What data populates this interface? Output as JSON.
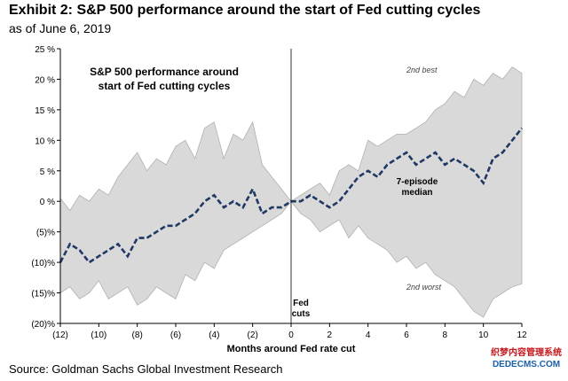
{
  "header": {
    "title": "Exhibit 2: S&P 500 performance around the start of Fed cutting cycles",
    "subtitle": "as of June 6, 2019"
  },
  "source": "Source: Goldman Sachs Global Investment Research",
  "watermark": {
    "line1": "织梦内容管理系统",
    "line2": "DEDECMS.COM"
  },
  "colors": {
    "band": "#d9d9d9",
    "band_edge": "#b0b0b0",
    "median": "#1f3864",
    "axis": "#000000"
  },
  "chart_data": {
    "type": "area",
    "title": "S&P 500 performance around start of Fed cutting cycles",
    "xlabel": "Months around Fed rate cut",
    "ylabel": "",
    "xlim": [
      -12,
      12
    ],
    "ylim": [
      -20,
      25
    ],
    "x_ticks": [
      -12,
      -10,
      -8,
      -6,
      -4,
      -2,
      0,
      2,
      4,
      6,
      8,
      10,
      12
    ],
    "x_tick_labels": [
      "(12)",
      "(10)",
      "(8)",
      "(6)",
      "(4)",
      "(2)",
      "0",
      "2",
      "4",
      "6",
      "8",
      "10",
      "12"
    ],
    "y_ticks": [
      -20,
      -15,
      -10,
      -5,
      0,
      5,
      10,
      15,
      20,
      25
    ],
    "y_tick_labels": [
      "(20)%",
      "(15)%",
      "(10)%",
      "(5)%",
      "0 %",
      "5 %",
      "10 %",
      "15 %",
      "20 %",
      "25 %"
    ],
    "grid": false,
    "event_line_x": 0,
    "series": [
      {
        "name": "2nd best",
        "x": [
          -12,
          -11.5,
          -11,
          -10.5,
          -10,
          -9.5,
          -9,
          -8.5,
          -8,
          -7.5,
          -7,
          -6.5,
          -6,
          -5.5,
          -5,
          -4.5,
          -4,
          -3.5,
          -3,
          -2.5,
          -2,
          -1.5,
          -1,
          -0.5,
          0,
          0.5,
          1,
          1.5,
          2,
          2.5,
          3,
          3.5,
          4,
          4.5,
          5,
          5.5,
          6,
          6.5,
          7,
          7.5,
          8,
          8.5,
          9,
          9.5,
          10,
          10.5,
          11,
          11.5,
          12
        ],
        "values": [
          0.5,
          -1.5,
          1,
          0,
          2,
          1,
          4,
          6,
          8,
          5,
          7,
          6,
          9,
          10,
          7,
          12,
          13,
          7,
          11,
          10,
          13,
          6,
          4,
          2,
          0,
          1,
          2,
          3,
          1,
          5,
          6,
          5,
          10,
          9,
          10,
          11,
          11,
          12,
          13,
          15,
          16,
          18,
          17,
          20,
          19,
          21,
          20,
          22,
          21
        ]
      },
      {
        "name": "2nd worst",
        "x": [
          -12,
          -11.5,
          -11,
          -10.5,
          -10,
          -9.5,
          -9,
          -8.5,
          -8,
          -7.5,
          -7,
          -6.5,
          -6,
          -5.5,
          -5,
          -4.5,
          -4,
          -3.5,
          -3,
          -2.5,
          -2,
          -1.5,
          -1,
          -0.5,
          0,
          0.5,
          1,
          1.5,
          2,
          2.5,
          3,
          3.5,
          4,
          4.5,
          5,
          5.5,
          6,
          6.5,
          7,
          7.5,
          8,
          8.5,
          9,
          9.5,
          10,
          10.5,
          11,
          11.5,
          12
        ],
        "values": [
          -15,
          -14,
          -16,
          -15,
          -13,
          -16,
          -15,
          -14,
          -17,
          -16,
          -14,
          -15,
          -16,
          -12,
          -13,
          -10,
          -11,
          -8,
          -7,
          -6,
          -5,
          -4,
          -3,
          -2,
          0,
          -2,
          -3,
          -5,
          -4,
          -3,
          -6,
          -4,
          -6,
          -7,
          -8,
          -10,
          -9,
          -11,
          -10,
          -12,
          -13,
          -14,
          -16,
          -18,
          -19,
          -16,
          -15,
          -14,
          -13.5
        ]
      },
      {
        "name": "7-episode median",
        "x": [
          -12,
          -11.5,
          -11,
          -10.5,
          -10,
          -9.5,
          -9,
          -8.5,
          -8,
          -7.5,
          -7,
          -6.5,
          -6,
          -5.5,
          -5,
          -4.5,
          -4,
          -3.5,
          -3,
          -2.5,
          -2,
          -1.5,
          -1,
          -0.5,
          0,
          0.5,
          1,
          1.5,
          2,
          2.5,
          3,
          3.5,
          4,
          4.5,
          5,
          5.5,
          6,
          6.5,
          7,
          7.5,
          8,
          8.5,
          9,
          9.5,
          10,
          10.5,
          11,
          11.5,
          12
        ],
        "values": [
          -10,
          -7,
          -8,
          -10,
          -9,
          -8,
          -7,
          -9,
          -6,
          -6,
          -5,
          -4,
          -4,
          -3,
          -2,
          0,
          1,
          -1,
          0,
          -1,
          2,
          -2,
          -1,
          -1,
          0,
          0,
          1,
          0,
          -1,
          0,
          2,
          4,
          5,
          4,
          6,
          7,
          8,
          6,
          7,
          8,
          6,
          7,
          6,
          5,
          3,
          7,
          8,
          10,
          12
        ]
      }
    ],
    "annotations": [
      "2nd best",
      "7-episode median",
      "2nd worst",
      "Fed",
      "cuts"
    ]
  }
}
